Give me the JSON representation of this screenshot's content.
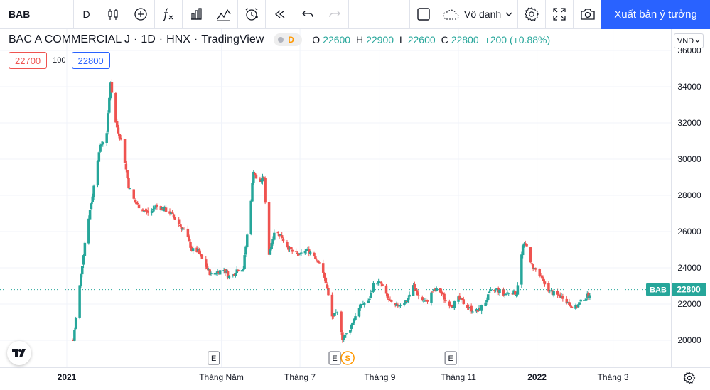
{
  "toolbar": {
    "symbol": "BAB",
    "interval": "D",
    "layout_name": "Vô danh",
    "publish_label": "Xuất bản ý tưởng"
  },
  "legend": {
    "title": "BAC A COMMERCIAL J",
    "interval": "1D",
    "exchange": "HNX",
    "source": "TradingView",
    "badge": "D",
    "open_key": "O",
    "open": "22600",
    "high_key": "H",
    "high": "22900",
    "low_key": "L",
    "low": "22600",
    "close_key": "C",
    "close": "22800",
    "change": "+200 (+0.88%)"
  },
  "trade": {
    "sell": "22700",
    "spread": "100",
    "buy": "22800"
  },
  "currency": "VND",
  "colors": {
    "up": "#26a69a",
    "down": "#ef5350",
    "accent": "#2962ff",
    "event": "#ff9800"
  },
  "price_axis": {
    "labels": [
      "36000",
      "34000",
      "32000",
      "30000",
      "28000",
      "26000",
      "24000",
      "22000",
      "20000"
    ]
  },
  "last_price": {
    "symbol": "BAB",
    "value": "22800"
  },
  "time_axis": {
    "labels": [
      "2021",
      "Tháng Năm",
      "Tháng 7",
      "Tháng 9",
      "Tháng 11",
      "2022",
      "Tháng 3"
    ]
  },
  "events": [
    {
      "type": "earnings",
      "label": "E"
    },
    {
      "type": "earnings",
      "label": "E"
    },
    {
      "type": "dividend",
      "label": "S"
    },
    {
      "type": "earnings",
      "label": "E"
    }
  ],
  "chart_data": {
    "type": "candlestick",
    "symbol": "BAB",
    "currency": "VND",
    "y_range": [
      19000,
      36000
    ],
    "last_close": 22800,
    "price_path": [
      [
        "2021-01-06",
        20000
      ],
      [
        "2021-01-11",
        23000
      ],
      [
        "2021-01-16",
        26000
      ],
      [
        "2021-01-21",
        28000
      ],
      [
        "2021-01-26",
        30500
      ],
      [
        "2021-02-01",
        31500
      ],
      [
        "2021-02-04",
        34300
      ],
      [
        "2021-02-08",
        32000
      ],
      [
        "2021-02-13",
        30800
      ],
      [
        "2021-02-18",
        28500
      ],
      [
        "2021-02-23",
        27600
      ],
      [
        "2021-03-01",
        27200
      ],
      [
        "2021-03-06",
        27000
      ],
      [
        "2021-03-11",
        27400
      ],
      [
        "2021-03-16",
        27300
      ],
      [
        "2021-03-23",
        27000
      ],
      [
        "2021-03-28",
        26500
      ],
      [
        "2021-04-03",
        26000
      ],
      [
        "2021-04-08",
        25000
      ],
      [
        "2021-04-13",
        24900
      ],
      [
        "2021-04-18",
        24200
      ],
      [
        "2021-04-23",
        23600
      ],
      [
        "2021-04-28",
        23800
      ],
      [
        "2021-05-03",
        23900
      ],
      [
        "2021-05-08",
        23400
      ],
      [
        "2021-05-13",
        23900
      ],
      [
        "2021-05-18",
        24000
      ],
      [
        "2021-05-23",
        27000
      ],
      [
        "2021-05-26",
        29400
      ],
      [
        "2021-05-29",
        28600
      ],
      [
        "2021-06-03",
        29000
      ],
      [
        "2021-06-06",
        24500
      ],
      [
        "2021-06-11",
        26000
      ],
      [
        "2021-06-16",
        25800
      ],
      [
        "2021-06-21",
        25200
      ],
      [
        "2021-06-26",
        24800
      ],
      [
        "2021-07-01",
        24700
      ],
      [
        "2021-07-06",
        25000
      ],
      [
        "2021-07-11",
        24800
      ],
      [
        "2021-07-16",
        24300
      ],
      [
        "2021-07-21",
        23200
      ],
      [
        "2021-07-26",
        21300
      ],
      [
        "2021-07-31",
        21500
      ],
      [
        "2021-08-03",
        20100
      ],
      [
        "2021-08-08",
        20500
      ],
      [
        "2021-08-13",
        21400
      ],
      [
        "2021-08-18",
        22000
      ],
      [
        "2021-08-23",
        22100
      ],
      [
        "2021-08-28",
        23300
      ],
      [
        "2021-09-02",
        23100
      ],
      [
        "2021-09-07",
        22300
      ],
      [
        "2021-09-12",
        21800
      ],
      [
        "2021-09-17",
        22000
      ],
      [
        "2021-09-22",
        22200
      ],
      [
        "2021-09-27",
        23000
      ],
      [
        "2021-10-02",
        22300
      ],
      [
        "2021-10-07",
        22100
      ],
      [
        "2021-10-12",
        22700
      ],
      [
        "2021-10-17",
        22800
      ],
      [
        "2021-10-22",
        22200
      ],
      [
        "2021-10-27",
        21900
      ],
      [
        "2021-11-01",
        22300
      ],
      [
        "2021-11-06",
        22000
      ],
      [
        "2021-11-11",
        21700
      ],
      [
        "2021-11-16",
        21600
      ],
      [
        "2021-11-21",
        22000
      ],
      [
        "2021-11-26",
        22700
      ],
      [
        "2021-12-01",
        22800
      ],
      [
        "2021-12-06",
        22500
      ],
      [
        "2021-12-11",
        22700
      ],
      [
        "2021-12-16",
        22600
      ],
      [
        "2021-12-21",
        25200
      ],
      [
        "2021-12-24",
        25300
      ],
      [
        "2021-12-27",
        24200
      ],
      [
        "2022-01-01",
        23800
      ],
      [
        "2022-01-06",
        23200
      ],
      [
        "2022-01-11",
        22700
      ],
      [
        "2022-01-16",
        22500
      ],
      [
        "2022-01-21",
        22400
      ],
      [
        "2022-01-26",
        22000
      ],
      [
        "2022-01-31",
        21800
      ],
      [
        "2022-02-05",
        22200
      ],
      [
        "2022-02-10",
        22500
      ],
      [
        "2022-02-13",
        22800
      ]
    ]
  }
}
